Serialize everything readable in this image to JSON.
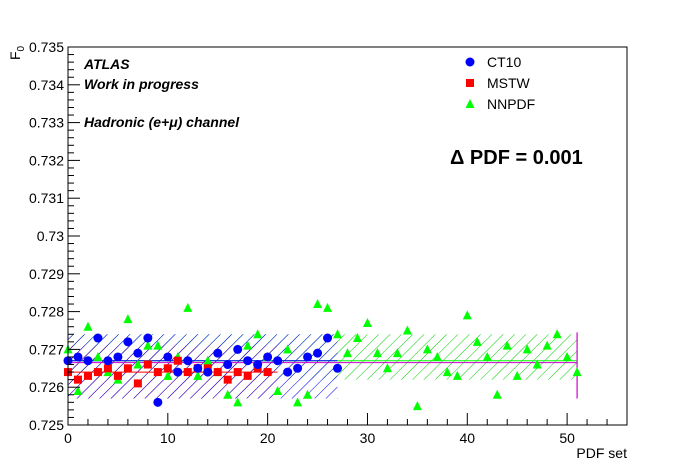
{
  "chart_data": {
    "type": "scatter",
    "title": "",
    "xlabel": "PDF set",
    "ylabel": "F",
    "ylabel_sub": "0",
    "xlim": [
      0,
      56
    ],
    "ylim": [
      0.725,
      0.735
    ],
    "x_ticks": [
      0,
      10,
      20,
      30,
      40,
      50
    ],
    "y_ticks": [
      "0.725",
      "0.726",
      "0.727",
      "0.728",
      "0.729",
      "0.73",
      "0.731",
      "0.732",
      "0.733",
      "0.734",
      "0.735"
    ],
    "grid": false,
    "legend_position": "top-right",
    "annotations": {
      "line1": "ATLAS",
      "line2": "Work in progress",
      "line3": "Hadronic (e+μ) channel",
      "delta": "Δ PDF = 0.001"
    },
    "series": [
      {
        "name": "CT10",
        "color": "#0000ff",
        "marker": "circle",
        "x": [
          0,
          1,
          2,
          3,
          4,
          5,
          6,
          7,
          8,
          9,
          10,
          11,
          12,
          13,
          14,
          15,
          16,
          17,
          18,
          19,
          20,
          21,
          22,
          23,
          24,
          25,
          26,
          27
        ],
        "y": [
          0.7267,
          0.7268,
          0.7267,
          0.7273,
          0.7267,
          0.7268,
          0.7272,
          0.7269,
          0.7273,
          0.7256,
          0.7268,
          0.7264,
          0.7267,
          0.7265,
          0.7264,
          0.7269,
          0.7266,
          0.727,
          0.7267,
          0.7266,
          0.7268,
          0.7267,
          0.7264,
          0.7265,
          0.7268,
          0.7269,
          0.7273,
          0.7265
        ],
        "band": [
          0.7257,
          0.7274
        ],
        "band_x": [
          0,
          27
        ],
        "central": 0.7267
      },
      {
        "name": "MSTW",
        "color": "#ff0000",
        "marker": "square",
        "x": [
          0,
          1,
          2,
          3,
          4,
          5,
          6,
          7,
          8,
          9,
          10,
          11,
          12,
          13,
          14,
          15,
          16,
          17,
          18,
          19,
          20
        ],
        "y": [
          0.7264,
          0.7262,
          0.7263,
          0.7264,
          0.7265,
          0.7263,
          0.7265,
          0.7261,
          0.7266,
          0.7264,
          0.7265,
          0.7267,
          0.7264,
          0.7265,
          0.7265,
          0.7264,
          0.7262,
          0.7264,
          0.7263,
          0.7265,
          0.7264
        ],
        "band": [
          0.7257,
          0.7271
        ],
        "band_x": [
          0,
          21
        ],
        "central": 0.7264
      },
      {
        "name": "NNPDF",
        "color": "#00ff00",
        "marker": "triangle",
        "x": [
          0,
          1,
          2,
          3,
          4,
          5,
          6,
          7,
          8,
          9,
          10,
          11,
          12,
          13,
          14,
          15,
          16,
          17,
          18,
          19,
          20,
          21,
          22,
          23,
          24,
          25,
          26,
          27,
          28,
          29,
          30,
          31,
          32,
          33,
          34,
          35,
          36,
          37,
          38,
          39,
          40,
          41,
          42,
          43,
          44,
          45,
          46,
          47,
          48,
          49,
          50,
          51
        ],
        "y": [
          0.727,
          0.7259,
          0.7276,
          0.7268,
          0.7264,
          0.7262,
          0.7278,
          0.7266,
          0.7271,
          0.7271,
          0.7263,
          0.7268,
          0.7281,
          0.7263,
          0.7267,
          0.7264,
          0.7258,
          0.7256,
          0.7271,
          0.7274,
          0.7268,
          0.7259,
          0.727,
          0.7256,
          0.7258,
          0.7282,
          0.7281,
          0.7274,
          0.7269,
          0.7273,
          0.7277,
          0.7269,
          0.7265,
          0.7269,
          0.7275,
          0.7255,
          0.727,
          0.7268,
          0.7264,
          0.7263,
          0.7279,
          0.7272,
          0.7268,
          0.7258,
          0.7271,
          0.7263,
          0.727,
          0.7266,
          0.7271,
          0.7274,
          0.7268,
          0.7264
        ],
        "band": [
          0.7262,
          0.7274
        ],
        "band_x": [
          0,
          51
        ],
        "central": 0.7267
      }
    ]
  }
}
